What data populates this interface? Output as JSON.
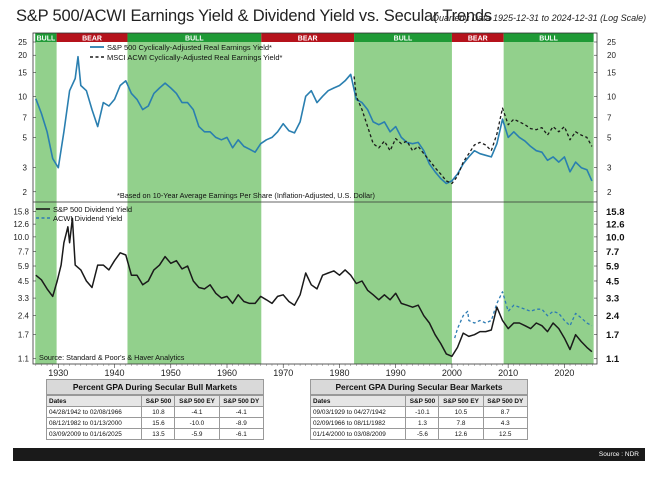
{
  "header": {
    "title": "S&P 500/ACWI Earnings Yield & Dividend Yield vs. Secular Trends",
    "subtitle": "Quarterly Data 1925-12-31 to 2024-12-31 (Log Scale)"
  },
  "colors": {
    "bull_band": "#92d08c",
    "bull_label": "#1f9a36",
    "bear_label": "#b5121b",
    "sp500_line": "#2a7fb0",
    "acwi_line": "#1a1a1a",
    "sp500_div": "#1a1a1a",
    "acwi_div": "#2e7cb3"
  },
  "chart_data": [
    {
      "type": "line",
      "title": "Earnings Yield",
      "scale": "log",
      "ylim": [
        1.8,
        25
      ],
      "yticks": [
        2,
        3,
        5,
        7,
        10,
        15,
        20,
        25
      ],
      "xlim": [
        1925.5,
        2025.8
      ],
      "xticks": [
        1930,
        1940,
        1950,
        1960,
        1970,
        1980,
        1990,
        2000,
        2010,
        2020
      ],
      "note": "*Based on 10-Year Average Earnings Per Share (Inflation-Adjusted, U.S. Dollar)",
      "regimes": [
        {
          "label": "BULL",
          "start": 1925.9,
          "end": 1929.7
        },
        {
          "label": "BEAR",
          "start": 1929.7,
          "end": 1942.3
        },
        {
          "label": "BULL",
          "start": 1942.3,
          "end": 1966.1
        },
        {
          "label": "BEAR",
          "start": 1966.1,
          "end": 1982.6
        },
        {
          "label": "BULL",
          "start": 1982.6,
          "end": 2000.0
        },
        {
          "label": "BEAR",
          "start": 2000.0,
          "end": 2009.2
        },
        {
          "label": "BULL",
          "start": 2009.2,
          "end": 2025.2
        }
      ],
      "series": [
        {
          "name": "S&P 500 Cyclically-Adjusted Real Earnings Yield*",
          "style": "solid",
          "x": [
            1926,
            1927,
            1928,
            1929,
            1930,
            1931,
            1932,
            1933,
            1933.5,
            1934,
            1935,
            1936,
            1937,
            1938,
            1939,
            1940,
            1941,
            1942,
            1943,
            1944,
            1945,
            1946,
            1947,
            1948,
            1949,
            1950,
            1951,
            1952,
            1953,
            1954,
            1955,
            1956,
            1957,
            1958,
            1959,
            1960,
            1961,
            1962,
            1963,
            1964,
            1965,
            1966,
            1967,
            1968,
            1969,
            1970,
            1971,
            1972,
            1973,
            1974,
            1975,
            1976,
            1977,
            1978,
            1979,
            1980,
            1981,
            1982,
            1983,
            1984,
            1985,
            1986,
            1987,
            1988,
            1989,
            1990,
            1991,
            1992,
            1993,
            1994,
            1995,
            1996,
            1997,
            1998,
            1999,
            2000,
            2001,
            2002,
            2003,
            2004,
            2005,
            2006,
            2007,
            2008,
            2009,
            2010,
            2011,
            2012,
            2013,
            2014,
            2015,
            2016,
            2017,
            2018,
            2019,
            2020,
            2021,
            2022,
            2023,
            2024,
            2024.9
          ],
          "y": [
            9.6,
            7.5,
            5.5,
            3.5,
            3.0,
            5.5,
            11.0,
            13.5,
            19.5,
            12.0,
            11.0,
            8.0,
            6.0,
            9.0,
            8.5,
            9.5,
            12.0,
            13.0,
            10.5,
            9.5,
            8.0,
            8.5,
            10.5,
            11.5,
            12.5,
            11.5,
            10.5,
            9.0,
            9.0,
            8.0,
            6.0,
            5.5,
            5.5,
            5.0,
            4.8,
            5.0,
            4.2,
            4.8,
            4.3,
            4.1,
            3.9,
            4.5,
            4.8,
            5.0,
            5.5,
            6.3,
            5.6,
            5.4,
            6.5,
            10.0,
            11.0,
            9.0,
            10.0,
            11.0,
            11.5,
            12.0,
            13.0,
            14.5,
            9.5,
            9.0,
            8.0,
            6.5,
            6.2,
            6.5,
            5.5,
            6.0,
            5.0,
            4.6,
            4.5,
            4.6,
            4.0,
            3.2,
            2.8,
            2.5,
            2.3,
            2.4,
            2.7,
            3.2,
            3.6,
            4.0,
            3.8,
            3.7,
            3.6,
            4.5,
            6.8,
            5.0,
            5.5,
            5.0,
            4.7,
            4.3,
            4.0,
            3.9,
            3.4,
            3.6,
            3.3,
            3.6,
            2.8,
            3.3,
            3.0,
            2.9,
            2.4
          ]
        },
        {
          "name": "MSCI ACWI Cyclically-Adjusted Real Earnings Yield*",
          "style": "dashed",
          "x": [
            1982.6,
            1983,
            1984,
            1985,
            1986,
            1987,
            1988,
            1989,
            1990,
            1991,
            1992,
            1993,
            1994,
            1995,
            1996,
            1997,
            1998,
            1999,
            2000,
            2001,
            2002,
            2003,
            2004,
            2005,
            2006,
            2007,
            2008,
            2009,
            2010,
            2011,
            2012,
            2013,
            2014,
            2015,
            2016,
            2017,
            2018,
            2019,
            2020,
            2021,
            2022,
            2023,
            2024,
            2024.9
          ],
          "y": [
            14.0,
            10.0,
            8.0,
            6.0,
            4.5,
            4.2,
            4.7,
            4.0,
            4.9,
            4.5,
            4.7,
            4.0,
            4.3,
            3.8,
            3.4,
            3.0,
            2.7,
            2.4,
            2.3,
            2.6,
            3.3,
            3.8,
            4.4,
            4.6,
            4.4,
            4.0,
            5.3,
            8.2,
            6.2,
            6.8,
            6.5,
            6.2,
            5.8,
            5.7,
            5.9,
            5.2,
            6.0,
            5.5,
            6.0,
            4.8,
            5.5,
            5.2,
            5.0,
            4.3
          ]
        }
      ]
    },
    {
      "type": "line",
      "title": "Dividend Yield",
      "scale": "log",
      "ylim": [
        1.0,
        17.5
      ],
      "yticks": [
        1.1,
        1.7,
        2.4,
        3.3,
        4.5,
        5.9,
        7.7,
        10.0,
        12.6,
        15.8
      ],
      "xlim": [
        1925.5,
        2025.8
      ],
      "source": "Source:  Standard & Poor's & Haver Analytics",
      "series": [
        {
          "name": "S&P 500 Dividend Yield",
          "style": "solid",
          "x": [
            1926,
            1927,
            1928,
            1929,
            1929.8,
            1930.5,
            1931,
            1931.7,
            1932,
            1932.5,
            1933,
            1934,
            1935,
            1936,
            1937,
            1938,
            1939,
            1940,
            1941,
            1942,
            1943,
            1944,
            1945,
            1946,
            1947,
            1948,
            1949,
            1950,
            1951,
            1952,
            1953,
            1954,
            1955,
            1956,
            1957,
            1958,
            1959,
            1960,
            1961,
            1962,
            1963,
            1964,
            1965,
            1966,
            1967,
            1968,
            1969,
            1970,
            1971,
            1972,
            1973,
            1974,
            1975,
            1976,
            1977,
            1978,
            1979,
            1980,
            1981,
            1982,
            1983,
            1984,
            1985,
            1986,
            1987,
            1988,
            1989,
            1990,
            1991,
            1992,
            1993,
            1994,
            1995,
            1996,
            1997,
            1998,
            1999,
            2000,
            2001,
            2002,
            2003,
            2004,
            2005,
            2006,
            2007,
            2008,
            2009,
            2010,
            2011,
            2012,
            2013,
            2014,
            2015,
            2016,
            2017,
            2018,
            2019,
            2020,
            2021,
            2022,
            2023,
            2024,
            2024.9
          ],
          "y": [
            5.0,
            4.6,
            3.9,
            3.4,
            4.5,
            6.0,
            9.0,
            12.0,
            9.0,
            14.0,
            6.0,
            5.5,
            4.5,
            4.0,
            6.0,
            6.0,
            5.5,
            6.5,
            7.5,
            7.2,
            5.0,
            5.0,
            4.2,
            4.5,
            5.5,
            6.0,
            7.0,
            6.2,
            6.5,
            5.6,
            5.9,
            4.5,
            4.0,
            3.9,
            4.2,
            3.6,
            3.3,
            3.4,
            3.0,
            3.5,
            3.1,
            3.0,
            3.0,
            3.4,
            3.2,
            3.0,
            3.4,
            3.5,
            3.1,
            2.9,
            3.5,
            5.2,
            4.2,
            3.9,
            5.0,
            5.2,
            5.4,
            5.0,
            5.5,
            5.0,
            4.3,
            4.5,
            3.8,
            3.5,
            3.2,
            3.5,
            3.2,
            3.6,
            3.0,
            2.9,
            2.8,
            2.9,
            2.4,
            2.1,
            1.7,
            1.45,
            1.2,
            1.15,
            1.35,
            1.75,
            1.65,
            1.7,
            1.8,
            1.8,
            1.85,
            2.8,
            2.2,
            1.9,
            2.1,
            2.1,
            2.0,
            1.9,
            2.1,
            2.0,
            1.8,
            2.1,
            1.9,
            1.6,
            1.3,
            1.7,
            1.5,
            1.35,
            1.25
          ]
        },
        {
          "name": "ACWI Dividend Yield",
          "style": "dashed",
          "x": [
            2000.5,
            2001,
            2002,
            2002.8,
            2003,
            2004,
            2005,
            2006,
            2007,
            2008,
            2009,
            2010,
            2011,
            2012,
            2013,
            2014,
            2015,
            2016,
            2017,
            2018,
            2019,
            2020,
            2021,
            2022,
            2023,
            2024,
            2024.9
          ],
          "y": [
            1.6,
            1.9,
            2.4,
            2.6,
            2.2,
            2.1,
            2.2,
            2.1,
            2.2,
            3.0,
            3.7,
            2.6,
            2.9,
            2.8,
            2.7,
            2.6,
            2.7,
            2.7,
            2.4,
            2.6,
            2.5,
            2.2,
            2.0,
            2.5,
            2.3,
            2.1,
            2.0
          ]
        }
      ]
    }
  ],
  "tables": {
    "bull": {
      "title": "Percent GPA During Secular Bull Markets",
      "headers": [
        "Dates",
        "S&P 500",
        "S&P 500 EY",
        "S&P 500 DY"
      ],
      "rows": [
        [
          "04/28/1942 to 02/08/1966",
          "10.8",
          "-4.1",
          "-4.1"
        ],
        [
          "08/12/1982 to 01/13/2000",
          "15.6",
          "-10.0",
          "-8.9"
        ],
        [
          "03/09/2009 to 01/16/2025",
          "13.5",
          "-5.9",
          "-6.1"
        ]
      ]
    },
    "bear": {
      "title": "Percent GPA During Secular Bear Markets",
      "headers": [
        "Dates",
        "S&P 500",
        "S&P 500 EY",
        "S&P 500 DY"
      ],
      "rows": [
        [
          "09/03/1929 to 04/27/1942",
          "-10.1",
          "10.5",
          "8.7"
        ],
        [
          "02/09/1966 to 08/11/1982",
          "1.3",
          "7.8",
          "4.3"
        ],
        [
          "01/14/2000 to 03/08/2009",
          "-5.6",
          "12.6",
          "12.5"
        ]
      ]
    }
  },
  "footer": {
    "source": "Source : NDR"
  }
}
